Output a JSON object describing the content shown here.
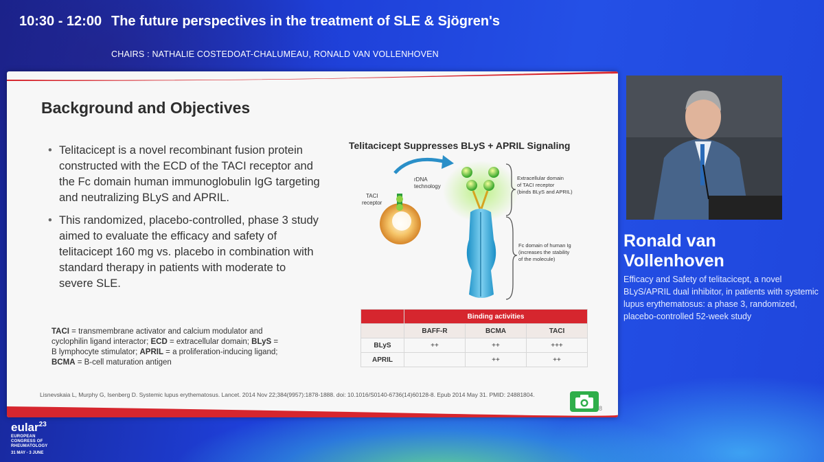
{
  "session": {
    "time": "10:30 - 12:00",
    "title": "The future perspectives in the treatment of SLE & Sjögren's",
    "chairs": "CHAIRS : NATHALIE COSTEDOAT-CHALUMEAU, RONALD VAN VOLLENHOVEN"
  },
  "slide": {
    "heading": "Background and Objectives",
    "bullets": [
      "Telitacicept is a novel recombinant fusion protein constructed with the ECD of the TACI receptor and the Fc domain human immunoglobulin IgG targeting and neutralizing BLyS and APRIL.",
      "This randomized, placebo-controlled, phase 3 study aimed to evaluate the efficacy and safety of telitacicept 160 mg vs. placebo in combination with standard therapy in patients with moderate to severe SLE."
    ],
    "abbreviations": [
      {
        "term": "TACI",
        "def": " = transmembrane activator and calcium modulator and cyclophilin ligand interactor; "
      },
      {
        "term": "ECD",
        "def": " = extracellular domain; "
      },
      {
        "term": "BLyS",
        "def": " = B lymphocyte stimulator; "
      },
      {
        "term": "APRIL",
        "def": " = a proliferation-inducing ligand; "
      },
      {
        "term": "BCMA",
        "def": " = B-cell maturation antigen"
      }
    ],
    "reference": "Lisnevskaia L, Murphy G, Isenberg D. Systemic lupus erythematosus. Lancet. 2014 Nov 22;384(9957):1878-1888. doi: 10.1016/S0140-6736(14)60128-8. Epub 2014 May 31. PMID: 24881804.",
    "page_number": "8",
    "figure": {
      "title": "Telitacicept Suppresses BLyS + APRIL Signaling",
      "rdna_label": [
        "rDNA",
        "technology"
      ],
      "taci_label": [
        "TACI",
        "receptor"
      ],
      "ecd_label": [
        "Extracellular domain",
        "of TACI receptor",
        "(binds BLyS and APRIL)"
      ],
      "fc_label": [
        "Fc domain of human Ig",
        "(increases the stability",
        "of the molecule)"
      ]
    },
    "table": {
      "header": "Binding activities",
      "columns": [
        "BAFF-R",
        "BCMA",
        "TACI"
      ],
      "rows": [
        {
          "label": "BLyS",
          "values": [
            "++",
            "++",
            "+++"
          ]
        },
        {
          "label": "APRIL",
          "values": [
            "",
            "++",
            "++"
          ]
        }
      ]
    }
  },
  "speaker": {
    "name_line1": "Ronald van",
    "name_line2": "Vollenhoven",
    "talk_title": "Efficacy and Safety of telitacicept, a novel BLyS/APRIL dual inhibitor, in patients with systemic lupus erythematosus: a phase 3, randomized, placebo-controlled 52-week study"
  },
  "event": {
    "name": "eular",
    "year": "23",
    "line1": "EUROPEAN",
    "line2": "CONGRESS OF",
    "line3": "RHEUMATOLOGY",
    "dates": "31 MAY - 3 JUNE"
  },
  "colors": {
    "accent_red": "#d6262e",
    "background_blue": "#1e3fd8",
    "camera_green": "#2fae4a"
  },
  "icons": [
    "camera-icon"
  ]
}
